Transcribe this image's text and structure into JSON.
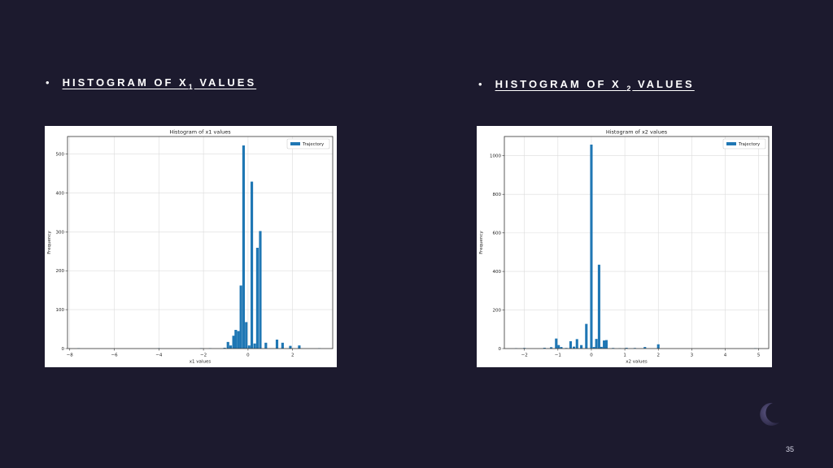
{
  "slide": {
    "bullet": "•",
    "number": "35",
    "background_color": "#1c1a2e",
    "decoration_icon": "crescent-moon-icon"
  },
  "headings": {
    "left": {
      "prefix": "HISTOGRAM OF X",
      "sub": "1",
      "suffix": " VALUES"
    },
    "right": {
      "prefix": "HISTOGRAM OF X ",
      "sub": "2",
      "suffix": " VALUES"
    }
  },
  "chart_data": [
    {
      "type": "bar",
      "title": "Histogram of x1 values",
      "xlabel": "x1 values",
      "ylabel": "Frequency",
      "xlim": [
        -8.1,
        3.8
      ],
      "ylim": [
        0,
        545
      ],
      "xticks": [
        -8,
        -6,
        -4,
        -2,
        0,
        2
      ],
      "yticks": [
        0,
        100,
        200,
        300,
        400,
        500
      ],
      "grid": true,
      "legend": {
        "position": "top-right"
      },
      "bar_width": 0.115,
      "series": [
        {
          "name": "Trajectory",
          "color": "#1f77b4",
          "x": [
            -7.6,
            -4.0,
            -2.1,
            -1.7,
            -1.05,
            -0.9,
            -0.78,
            -0.65,
            -0.55,
            -0.43,
            -0.32,
            -0.2,
            -0.08,
            0.05,
            0.17,
            0.3,
            0.42,
            0.55,
            0.8,
            1.3,
            1.55,
            1.9,
            2.3,
            3.2
          ],
          "values": [
            1,
            1,
            1,
            1,
            2,
            17,
            8,
            33,
            48,
            45,
            162,
            522,
            68,
            8,
            429,
            13,
            259,
            302,
            15,
            23,
            15,
            7,
            8,
            1
          ]
        }
      ]
    },
    {
      "type": "bar",
      "title": "Histogram of x2 values",
      "xlabel": "x2 values",
      "ylabel": "Frequency",
      "xlim": [
        -2.6,
        5.3
      ],
      "ylim": [
        0,
        1100
      ],
      "xticks": [
        -2,
        -1,
        0,
        1,
        2,
        3,
        4,
        5
      ],
      "yticks": [
        0,
        200,
        400,
        600,
        800,
        1000
      ],
      "grid": true,
      "legend": {
        "position": "top-right"
      },
      "bar_width": 0.075,
      "series": [
        {
          "name": "Trajectory",
          "color": "#1f77b4",
          "x": [
            -2.25,
            -2.0,
            -1.4,
            -1.2,
            -1.05,
            -0.98,
            -0.9,
            -0.75,
            -0.62,
            -0.52,
            -0.43,
            -0.3,
            -0.15,
            0.0,
            0.08,
            0.15,
            0.23,
            0.3,
            0.38,
            0.45,
            0.65,
            0.85,
            1.05,
            1.3,
            1.6,
            2.0,
            4.9
          ],
          "values": [
            2,
            3,
            4,
            7,
            52,
            18,
            8,
            3,
            38,
            10,
            49,
            18,
            128,
            1058,
            8,
            50,
            435,
            9,
            42,
            44,
            3,
            2,
            4,
            3,
            8,
            22,
            2
          ]
        }
      ]
    }
  ]
}
